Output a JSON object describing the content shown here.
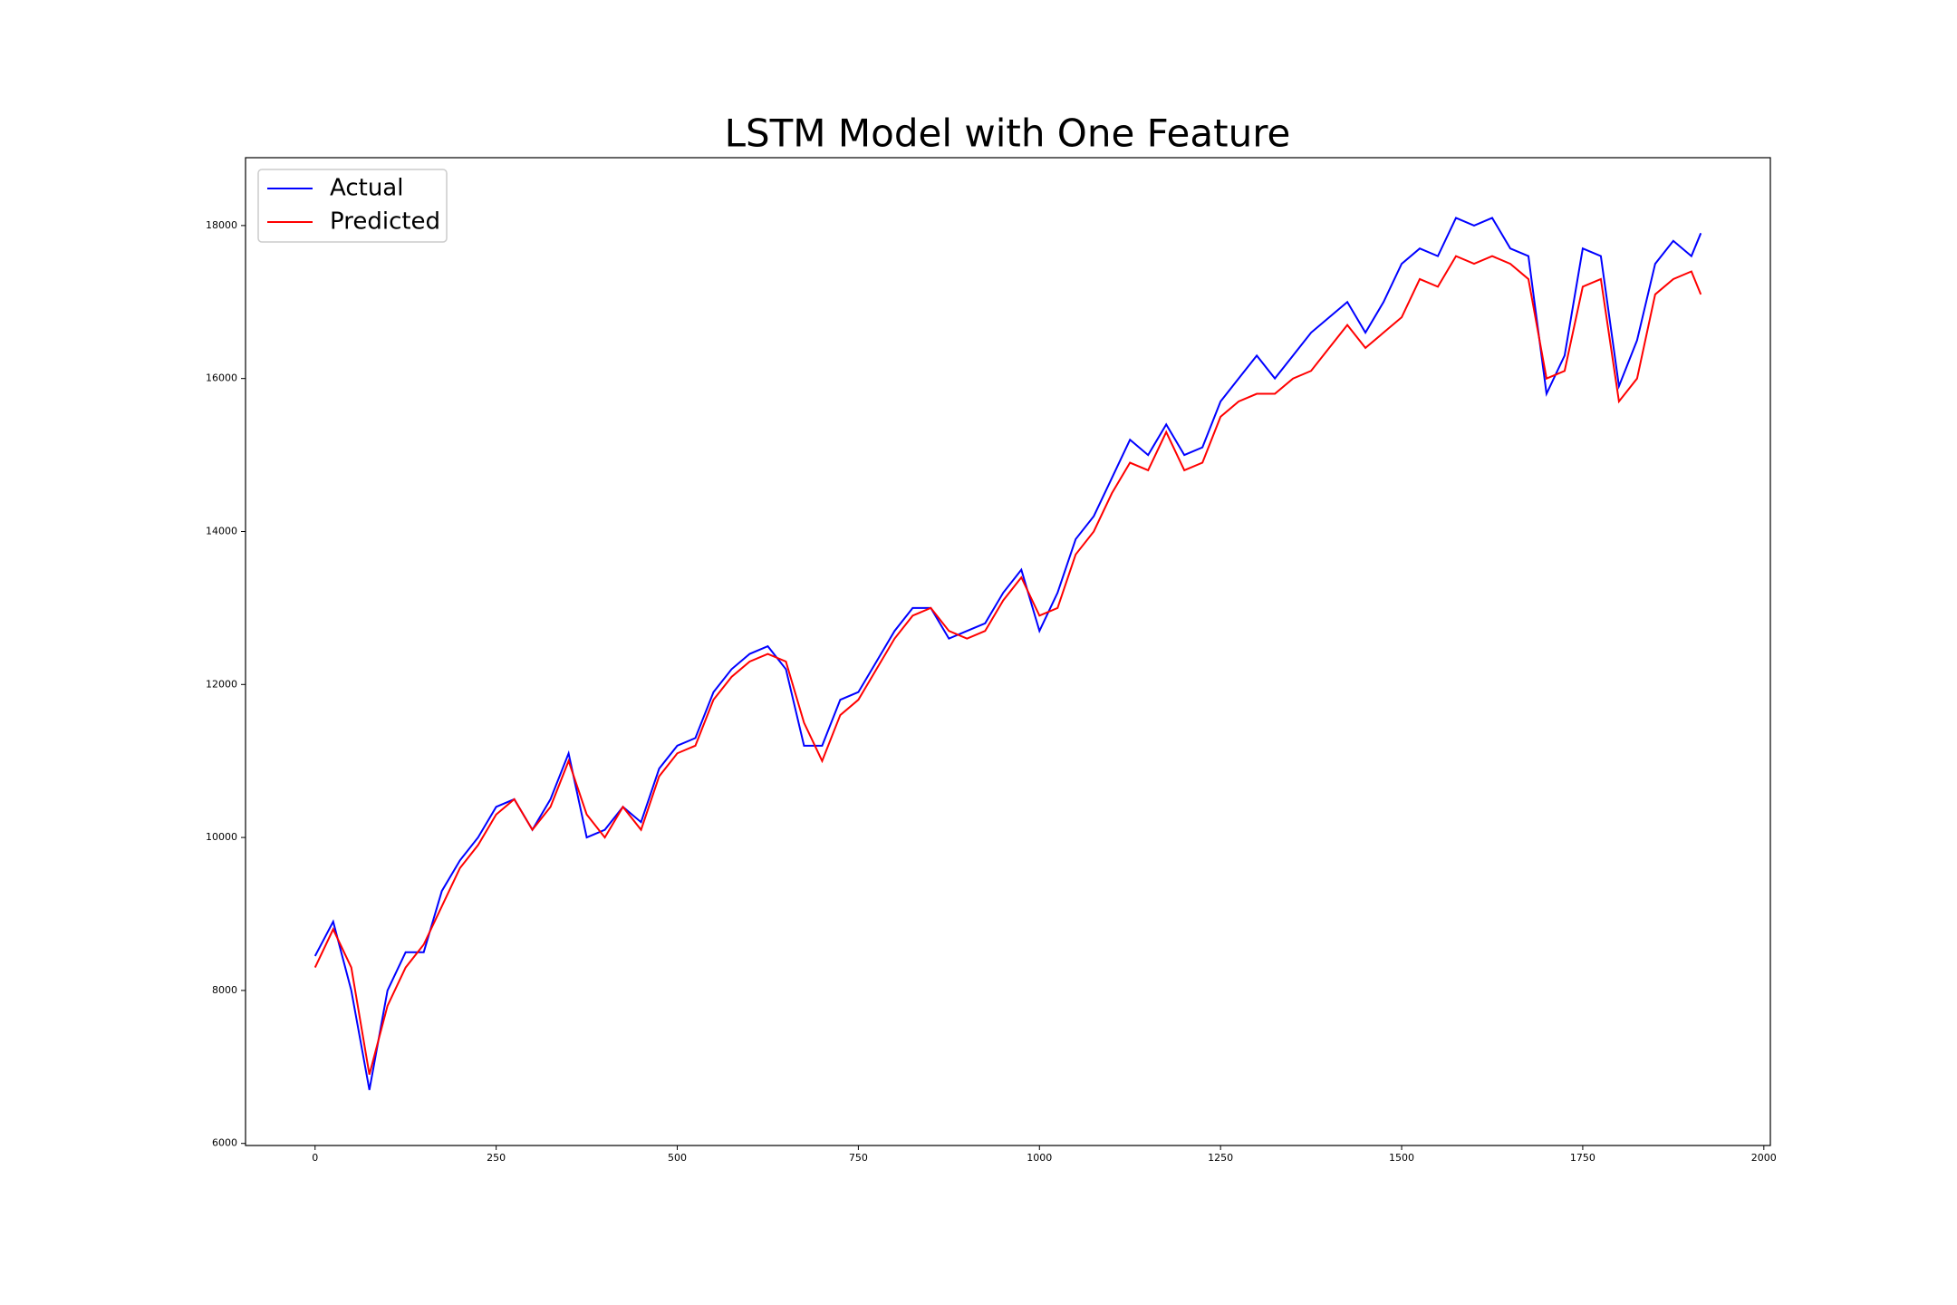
{
  "chart_data": {
    "type": "line",
    "title": "LSTM Model with One Feature",
    "x": [
      0,
      25,
      50,
      75,
      100,
      125,
      150,
      175,
      200,
      225,
      250,
      275,
      300,
      325,
      350,
      375,
      400,
      425,
      450,
      475,
      500,
      525,
      550,
      575,
      600,
      625,
      650,
      675,
      700,
      725,
      750,
      775,
      800,
      825,
      850,
      875,
      900,
      925,
      950,
      975,
      1000,
      1025,
      1050,
      1075,
      1100,
      1125,
      1150,
      1175,
      1200,
      1225,
      1250,
      1275,
      1300,
      1325,
      1350,
      1375,
      1400,
      1425,
      1450,
      1475,
      1500,
      1525,
      1550,
      1575,
      1600,
      1625,
      1650,
      1675,
      1700,
      1725,
      1750,
      1775,
      1800,
      1825,
      1850,
      1875,
      1900,
      1913
    ],
    "series": [
      {
        "name": "Actual",
        "color": "#0000ff",
        "values": [
          8450,
          8900,
          8000,
          6700,
          8000,
          8500,
          8500,
          9300,
          9700,
          10000,
          10400,
          10500,
          10100,
          10500,
          11100,
          10000,
          10100,
          10400,
          10200,
          10900,
          11200,
          11300,
          11900,
          12200,
          12400,
          12500,
          12200,
          11200,
          11200,
          11800,
          11900,
          12300,
          12700,
          13000,
          13000,
          12600,
          12700,
          12800,
          13200,
          13500,
          12700,
          13200,
          13900,
          14200,
          14700,
          15200,
          15000,
          15400,
          15000,
          15100,
          15700,
          16000,
          16300,
          16000,
          16300,
          16600,
          16800,
          17000,
          16600,
          17000,
          17500,
          17700,
          17600,
          18100,
          18000,
          18100,
          17700,
          17600,
          15800,
          16300,
          17700,
          17600,
          15900,
          16500,
          17500,
          17800,
          17600,
          17900
        ]
      },
      {
        "name": "Predicted",
        "color": "#ff0000",
        "values": [
          8300,
          8800,
          8300,
          6900,
          7800,
          8300,
          8600,
          9100,
          9600,
          9900,
          10300,
          10500,
          10100,
          10400,
          11000,
          10300,
          10000,
          10400,
          10100,
          10800,
          11100,
          11200,
          11800,
          12100,
          12300,
          12400,
          12300,
          11500,
          11000,
          11600,
          11800,
          12200,
          12600,
          12900,
          13000,
          12700,
          12600,
          12700,
          13100,
          13400,
          12900,
          13000,
          13700,
          14000,
          14500,
          14900,
          14800,
          15300,
          14800,
          14900,
          15500,
          15700,
          15800,
          15800,
          16000,
          16100,
          16400,
          16700,
          16400,
          16600,
          16800,
          17300,
          17200,
          17600,
          17500,
          17600,
          17500,
          17300,
          16000,
          16100,
          17200,
          17300,
          15700,
          16000,
          17100,
          17300,
          17400,
          17100
        ]
      }
    ],
    "xlim": [
      -96,
      2009
    ],
    "ylim": [
      5973,
      18887
    ],
    "xticks": [
      0,
      250,
      500,
      750,
      1000,
      1250,
      1500,
      1750,
      2000
    ],
    "yticks": [
      6000,
      8000,
      10000,
      12000,
      14000,
      16000,
      18000
    ],
    "legend": "upper left"
  }
}
